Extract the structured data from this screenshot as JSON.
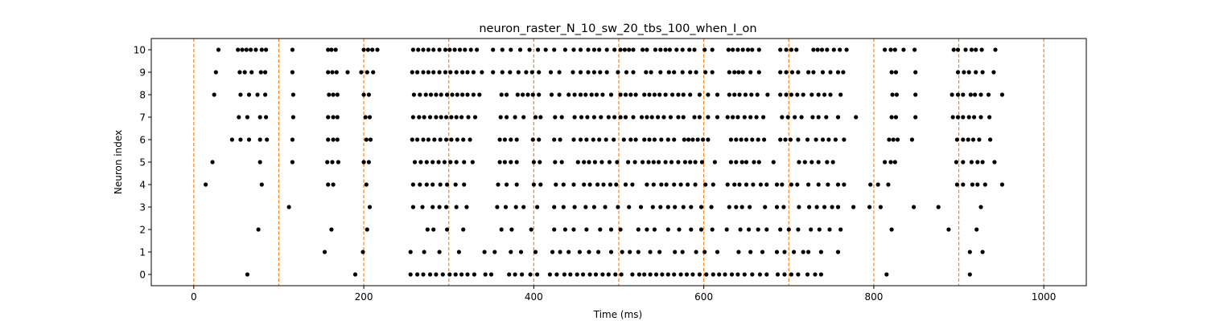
{
  "chart_data": {
    "type": "scatter",
    "title": "neuron_raster_N_10_sw_20_tbs_100_when_I_on",
    "xlabel": "Time (ms)",
    "ylabel": "Neuron index",
    "xlim": [
      -50,
      1050
    ],
    "ylim": [
      -0.5,
      10.5
    ],
    "xticks": [
      0,
      200,
      400,
      600,
      800,
      1000
    ],
    "yticks": [
      0,
      1,
      2,
      3,
      4,
      5,
      6,
      7,
      8,
      9,
      10
    ],
    "grid": false,
    "point_color": "#000000",
    "marker_lines": {
      "x": [
        0,
        100,
        200,
        300,
        400,
        500,
        600,
        700,
        800,
        900,
        1000
      ],
      "color": "#ff7f0e",
      "style": "dashed"
    },
    "series": [
      {
        "neuron": 10,
        "x": [
          29,
          52,
          57,
          62,
          67,
          73,
          80,
          85,
          116,
          158,
          162,
          167,
          200,
          205,
          210,
          216,
          258,
          264,
          270,
          276,
          282,
          289,
          296,
          301,
          307,
          313,
          319,
          326,
          333,
          352,
          363,
          373,
          384,
          395,
          405,
          414,
          424,
          437,
          447,
          455,
          464,
          471,
          477,
          486,
          495,
          502,
          507,
          512,
          517,
          528,
          533,
          543,
          549,
          555,
          560,
          568,
          575,
          583,
          589,
          601,
          610,
          629,
          634,
          640,
          646,
          652,
          657,
          665,
          690,
          697,
          703,
          709,
          729,
          734,
          739,
          745,
          753,
          760,
          768,
          813,
          820,
          825,
          835,
          848,
          894,
          899,
          908,
          915,
          920,
          927,
          943
        ]
      },
      {
        "neuron": 9,
        "x": [
          26,
          54,
          60,
          68,
          79,
          84,
          116,
          158,
          163,
          168,
          181,
          197,
          204,
          211,
          257,
          263,
          270,
          276,
          282,
          289,
          296,
          302,
          309,
          316,
          322,
          329,
          339,
          352,
          363,
          372,
          382,
          391,
          398,
          406,
          420,
          430,
          446,
          455,
          464,
          471,
          478,
          486,
          499,
          509,
          517,
          532,
          538,
          549,
          559,
          565,
          575,
          584,
          591,
          602,
          610,
          630,
          636,
          641,
          646,
          655,
          665,
          690,
          697,
          704,
          711,
          723,
          729,
          740,
          749,
          758,
          764,
          821,
          826,
          849,
          899,
          906,
          912,
          920,
          928,
          941
        ]
      },
      {
        "neuron": 8,
        "x": [
          24,
          55,
          65,
          75,
          84,
          117,
          159,
          164,
          169,
          200,
          206,
          259,
          266,
          273,
          279,
          285,
          291,
          298,
          304,
          310,
          316,
          322,
          329,
          336,
          362,
          368,
          381,
          387,
          393,
          399,
          406,
          421,
          430,
          441,
          448,
          455,
          461,
          468,
          474,
          481,
          491,
          502,
          508,
          514,
          520,
          530,
          536,
          542,
          548,
          555,
          563,
          570,
          576,
          584,
          595,
          605,
          616,
          630,
          636,
          642,
          649,
          656,
          663,
          675,
          690,
          697,
          703,
          710,
          717,
          727,
          735,
          742,
          749,
          761,
          822,
          827,
          849,
          892,
          899,
          905,
          914,
          919,
          926,
          935,
          951
        ]
      },
      {
        "neuron": 7,
        "x": [
          53,
          63,
          78,
          85,
          117,
          158,
          164,
          169,
          202,
          207,
          258,
          265,
          271,
          278,
          285,
          291,
          297,
          303,
          309,
          315,
          323,
          331,
          361,
          368,
          378,
          388,
          402,
          408,
          425,
          433,
          448,
          456,
          463,
          471,
          479,
          488,
          495,
          502,
          508,
          517,
          527,
          533,
          539,
          546,
          553,
          561,
          570,
          576,
          589,
          595,
          605,
          616,
          628,
          634,
          640,
          648,
          655,
          662,
          670,
          692,
          699,
          707,
          715,
          728,
          735,
          744,
          758,
          779,
          821,
          826,
          849,
          893,
          899,
          905,
          912,
          918,
          926,
          936
        ]
      },
      {
        "neuron": 6,
        "x": [
          45,
          55,
          65,
          78,
          86,
          116,
          158,
          164,
          169,
          203,
          208,
          257,
          263,
          270,
          276,
          283,
          290,
          297,
          303,
          310,
          317,
          325,
          360,
          366,
          373,
          380,
          399,
          406,
          424,
          431,
          447,
          455,
          462,
          470,
          477,
          485,
          494,
          506,
          514,
          520,
          530,
          536,
          542,
          550,
          558,
          565,
          577,
          582,
          587,
          593,
          599,
          605,
          632,
          638,
          644,
          650,
          657,
          664,
          671,
          690,
          696,
          702,
          711,
          722,
          732,
          740,
          747,
          755,
          765,
          818,
          823,
          828,
          845,
          898,
          905,
          911,
          917,
          924,
          937
        ]
      },
      {
        "neuron": 5,
        "x": [
          22,
          78,
          116,
          157,
          163,
          170,
          200,
          206,
          260,
          267,
          274,
          281,
          288,
          295,
          302,
          309,
          318,
          328,
          360,
          366,
          373,
          380,
          400,
          407,
          425,
          433,
          452,
          459,
          465,
          472,
          480,
          489,
          498,
          511,
          519,
          528,
          535,
          541,
          547,
          555,
          562,
          570,
          578,
          584,
          590,
          598,
          613,
          632,
          638,
          645,
          650,
          659,
          665,
          682,
          712,
          719,
          727,
          735,
          745,
          752,
          813,
          820,
          825,
          897,
          905,
          915,
          922,
          928,
          942
        ]
      },
      {
        "neuron": 4,
        "x": [
          14,
          80,
          158,
          164,
          203,
          258,
          266,
          274,
          281,
          290,
          298,
          308,
          318,
          358,
          368,
          380,
          400,
          408,
          426,
          435,
          447,
          459,
          466,
          475,
          482,
          490,
          497,
          508,
          516,
          533,
          541,
          550,
          556,
          565,
          573,
          581,
          590,
          602,
          611,
          628,
          636,
          642,
          650,
          658,
          667,
          674,
          686,
          692,
          703,
          710,
          723,
          735,
          746,
          758,
          765,
          796,
          805,
          817,
          898,
          905,
          916,
          922,
          931,
          951
        ]
      },
      {
        "neuron": 3,
        "x": [
          112,
          207,
          258,
          269,
          281,
          289,
          297,
          309,
          321,
          357,
          367,
          379,
          388,
          404,
          424,
          435,
          448,
          461,
          471,
          484,
          499,
          512,
          526,
          540,
          549,
          558,
          566,
          576,
          585,
          597,
          609,
          630,
          638,
          645,
          654,
          672,
          686,
          694,
          712,
          724,
          733,
          742,
          751,
          758,
          776,
          795,
          808,
          847,
          876,
          926
        ]
      },
      {
        "neuron": 2,
        "x": [
          76,
          162,
          204,
          275,
          282,
          298,
          317,
          362,
          374,
          397,
          424,
          437,
          447,
          462,
          478,
          491,
          502,
          523,
          533,
          542,
          558,
          571,
          585,
          597,
          610,
          627,
          643,
          653,
          664,
          674,
          690,
          700,
          711,
          726,
          736,
          748,
          761,
          821,
          888,
          921
        ]
      },
      {
        "neuron": 1,
        "x": [
          154,
          199,
          255,
          271,
          289,
          312,
          342,
          354,
          373,
          385,
          402,
          422,
          431,
          441,
          454,
          465,
          476,
          491,
          504,
          513,
          523,
          537,
          548,
          566,
          575,
          591,
          601,
          616,
          641,
          655,
          669,
          686,
          695,
          706,
          717,
          723,
          738,
          758,
          913,
          928
        ]
      },
      {
        "neuron": 0,
        "x": [
          63,
          190,
          255,
          263,
          270,
          278,
          285,
          293,
          301,
          308,
          315,
          322,
          330,
          343,
          350,
          371,
          378,
          386,
          396,
          404,
          419,
          427,
          436,
          443,
          451,
          458,
          466,
          473,
          481,
          488,
          496,
          503,
          516,
          524,
          530,
          537,
          544,
          551,
          558,
          565,
          573,
          580,
          587,
          595,
          603,
          611,
          618,
          625,
          633,
          640,
          648,
          657,
          666,
          674,
          687,
          695,
          703,
          711,
          722,
          731,
          738,
          815,
          913
        ]
      }
    ]
  }
}
